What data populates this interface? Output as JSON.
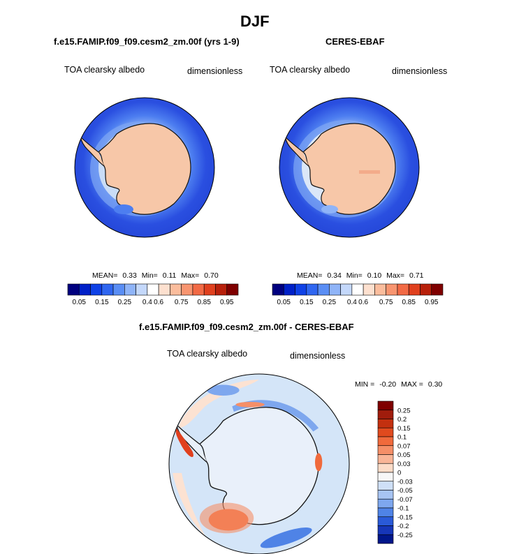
{
  "page_title": "DJF",
  "colors": {
    "ocean_blue": "#2a4fe0",
    "ocean_mid": "#3f73f0",
    "ice_edge": "#bcd6f5",
    "land_salmon": "#f7c7a8",
    "coast": "#111111",
    "diff_base": "#d4e5f8",
    "diff_positive": "#f25a2a",
    "diff_negative": "#2c55d8"
  },
  "panels": [
    {
      "title": "f.e15.FAMIP.f09_f09.cesm2_zm.00f (yrs 1-9)",
      "variable": "TOA clearsky albedo",
      "units": "dimensionless",
      "stats": {
        "mean_label": "MEAN=",
        "mean": "0.33",
        "min_label": "Min=",
        "min": "0.11",
        "max_label": "Max=",
        "max": "0.70"
      }
    },
    {
      "title": "CERES-EBAF",
      "variable": "TOA clearsky albedo",
      "units": "dimensionless",
      "stats": {
        "mean_label": "MEAN=",
        "mean": "0.34",
        "min_label": "Min=",
        "min": "0.10",
        "max_label": "Max=",
        "max": "0.71"
      }
    }
  ],
  "colorbar": {
    "colors": [
      "#00007f",
      "#0020c8",
      "#0f41e6",
      "#2f66f0",
      "#5a8ef5",
      "#8fb4f8",
      "#c4d8fb",
      "#ffffff",
      "#fde0cf",
      "#fbbd9d",
      "#f89570",
      "#f26a45",
      "#e0401e",
      "#b8200b",
      "#7f0000"
    ],
    "labels": [
      "0.05",
      "0.15",
      "0.25",
      "0.4",
      "0.6",
      "0.75",
      "0.85",
      "0.95"
    ]
  },
  "diff_panel": {
    "title": "f.e15.FAMIP.f09_f09.cesm2_zm.00f - CERES-EBAF",
    "variable": "TOA clearsky albedo",
    "units": "dimensionless",
    "minmax": {
      "min_label": "MIN =",
      "min": "-0.20",
      "max_label": "MAX =",
      "max": "0.30"
    }
  },
  "diff_colorbar": {
    "colors": [
      "#7f0000",
      "#a01c0c",
      "#c3300f",
      "#e04a1e",
      "#f06a3c",
      "#f58f68",
      "#f9b597",
      "#fcdcc8",
      "#f7f7f7",
      "#cfe0f7",
      "#a7c4f3",
      "#7ea7ee",
      "#4f83e6",
      "#2a5ad8",
      "#1636b8",
      "#00168a"
    ],
    "labels": [
      "0.25",
      "0.2",
      "0.15",
      "0.1",
      "0.07",
      "0.05",
      "0.03",
      "0",
      "-0.03",
      "-0.05",
      "-0.07",
      "-0.1",
      "-0.15",
      "-0.2",
      "-0.25"
    ]
  }
}
